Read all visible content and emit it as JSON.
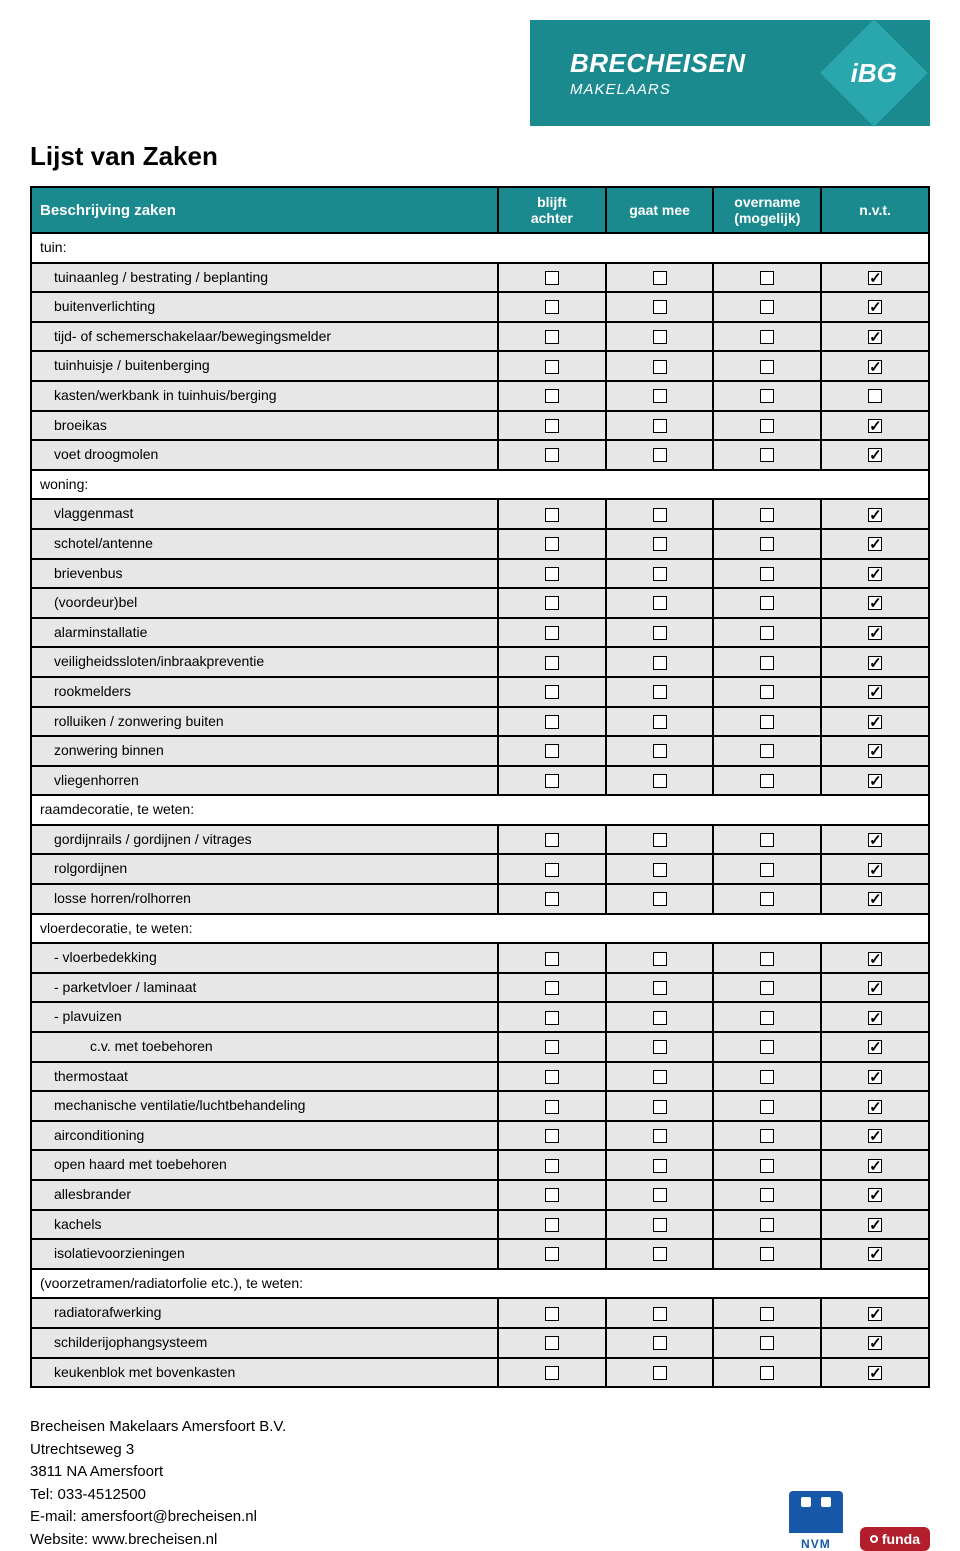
{
  "logo": {
    "brand": "BRECHEISEN",
    "sub": "MAKELAARS",
    "badge": "iBG"
  },
  "title": "Lijst van Zaken",
  "columns": {
    "desc": "Beschrijving zaken",
    "c1_l1": "blijft",
    "c1_l2": "achter",
    "c2": "gaat mee",
    "c3_l1": "overname",
    "c3_l2": "(mogelijk)",
    "c4": "n.v.t."
  },
  "rows": [
    {
      "type": "section",
      "label": "tuin:"
    },
    {
      "type": "item",
      "label": "tuinaanleg / bestrating / beplanting",
      "checks": [
        0,
        0,
        0,
        1
      ]
    },
    {
      "type": "item",
      "label": "buitenverlichting",
      "checks": [
        0,
        0,
        0,
        1
      ]
    },
    {
      "type": "item",
      "label": "tijd- of schemerschakelaar/bewegingsmelder",
      "checks": [
        0,
        0,
        0,
        1
      ]
    },
    {
      "type": "item",
      "label": "tuinhuisje / buitenberging",
      "checks": [
        0,
        0,
        0,
        1
      ]
    },
    {
      "type": "item",
      "label": "kasten/werkbank in tuinhuis/berging",
      "checks": [
        0,
        0,
        0,
        0
      ]
    },
    {
      "type": "item",
      "label": "broeikas",
      "checks": [
        0,
        0,
        0,
        1
      ]
    },
    {
      "type": "item",
      "label": "voet droogmolen",
      "checks": [
        0,
        0,
        0,
        1
      ]
    },
    {
      "type": "section",
      "label": "woning:"
    },
    {
      "type": "item",
      "label": "vlaggenmast",
      "checks": [
        0,
        0,
        0,
        1
      ]
    },
    {
      "type": "item",
      "label": "schotel/antenne",
      "checks": [
        0,
        0,
        0,
        1
      ]
    },
    {
      "type": "item",
      "label": "brievenbus",
      "checks": [
        0,
        0,
        0,
        1
      ]
    },
    {
      "type": "item",
      "label": "(voordeur)bel",
      "checks": [
        0,
        0,
        0,
        1
      ]
    },
    {
      "type": "item",
      "label": "alarminstallatie",
      "checks": [
        0,
        0,
        0,
        1
      ]
    },
    {
      "type": "item",
      "label": "veiligheidssloten/inbraakpreventie",
      "checks": [
        0,
        0,
        0,
        1
      ]
    },
    {
      "type": "item",
      "label": "rookmelders",
      "checks": [
        0,
        0,
        0,
        1
      ]
    },
    {
      "type": "item",
      "label": "rolluiken / zonwering buiten",
      "checks": [
        0,
        0,
        0,
        1
      ]
    },
    {
      "type": "item",
      "label": "zonwering binnen",
      "checks": [
        0,
        0,
        0,
        1
      ]
    },
    {
      "type": "item",
      "label": "vliegenhorren",
      "checks": [
        0,
        0,
        0,
        1
      ]
    },
    {
      "type": "section",
      "label": "raamdecoratie, te weten:"
    },
    {
      "type": "item",
      "label": "gordijnrails / gordijnen / vitrages",
      "checks": [
        0,
        0,
        0,
        1
      ]
    },
    {
      "type": "item",
      "label": "rolgordijnen",
      "checks": [
        0,
        0,
        0,
        1
      ]
    },
    {
      "type": "item",
      "label": "losse horren/rolhorren",
      "checks": [
        0,
        0,
        0,
        1
      ]
    },
    {
      "type": "section",
      "label": "vloerdecoratie, te weten:"
    },
    {
      "type": "item",
      "label": "-  vloerbedekking",
      "checks": [
        0,
        0,
        0,
        1
      ]
    },
    {
      "type": "item",
      "label": "-  parketvloer / laminaat",
      "checks": [
        0,
        0,
        0,
        1
      ]
    },
    {
      "type": "item",
      "label": "-  plavuizen",
      "checks": [
        0,
        0,
        0,
        1
      ]
    },
    {
      "type": "item",
      "indent": 3,
      "label": "c.v. met toebehoren",
      "checks": [
        0,
        0,
        0,
        1
      ]
    },
    {
      "type": "item",
      "label": "thermostaat",
      "checks": [
        0,
        0,
        0,
        1
      ]
    },
    {
      "type": "item",
      "label": "mechanische ventilatie/luchtbehandeling",
      "checks": [
        0,
        0,
        0,
        1
      ]
    },
    {
      "type": "item",
      "label": "airconditioning",
      "checks": [
        0,
        0,
        0,
        1
      ]
    },
    {
      "type": "item",
      "label": "open haard met toebehoren",
      "checks": [
        0,
        0,
        0,
        1
      ]
    },
    {
      "type": "item",
      "label": "allesbrander",
      "checks": [
        0,
        0,
        0,
        1
      ]
    },
    {
      "type": "item",
      "label": "kachels",
      "checks": [
        0,
        0,
        0,
        1
      ]
    },
    {
      "type": "item",
      "label": "isolatievoorzieningen",
      "checks": [
        0,
        0,
        0,
        1
      ]
    },
    {
      "type": "section",
      "label": "(voorzetramen/radiatorfolie etc.), te weten:"
    },
    {
      "type": "item",
      "label": "radiatorafwerking",
      "checks": [
        0,
        0,
        0,
        1
      ]
    },
    {
      "type": "item",
      "label": "schilderijophangsysteem",
      "checks": [
        0,
        0,
        0,
        1
      ]
    },
    {
      "type": "item",
      "label": "keukenblok met bovenkasten",
      "checks": [
        0,
        0,
        0,
        1
      ]
    }
  ],
  "footer": {
    "company": "Brecheisen Makelaars Amersfoort B.V.",
    "street": "Utrechtseweg 3",
    "postal": "3811 NA Amersfoort",
    "tel": "Tel: 033-4512500",
    "email": "E-mail: amersfoort@brecheisen.nl",
    "website": "Website: www.brecheisen.nl"
  },
  "badges": {
    "nvm": "NVM",
    "funda": "funda"
  }
}
